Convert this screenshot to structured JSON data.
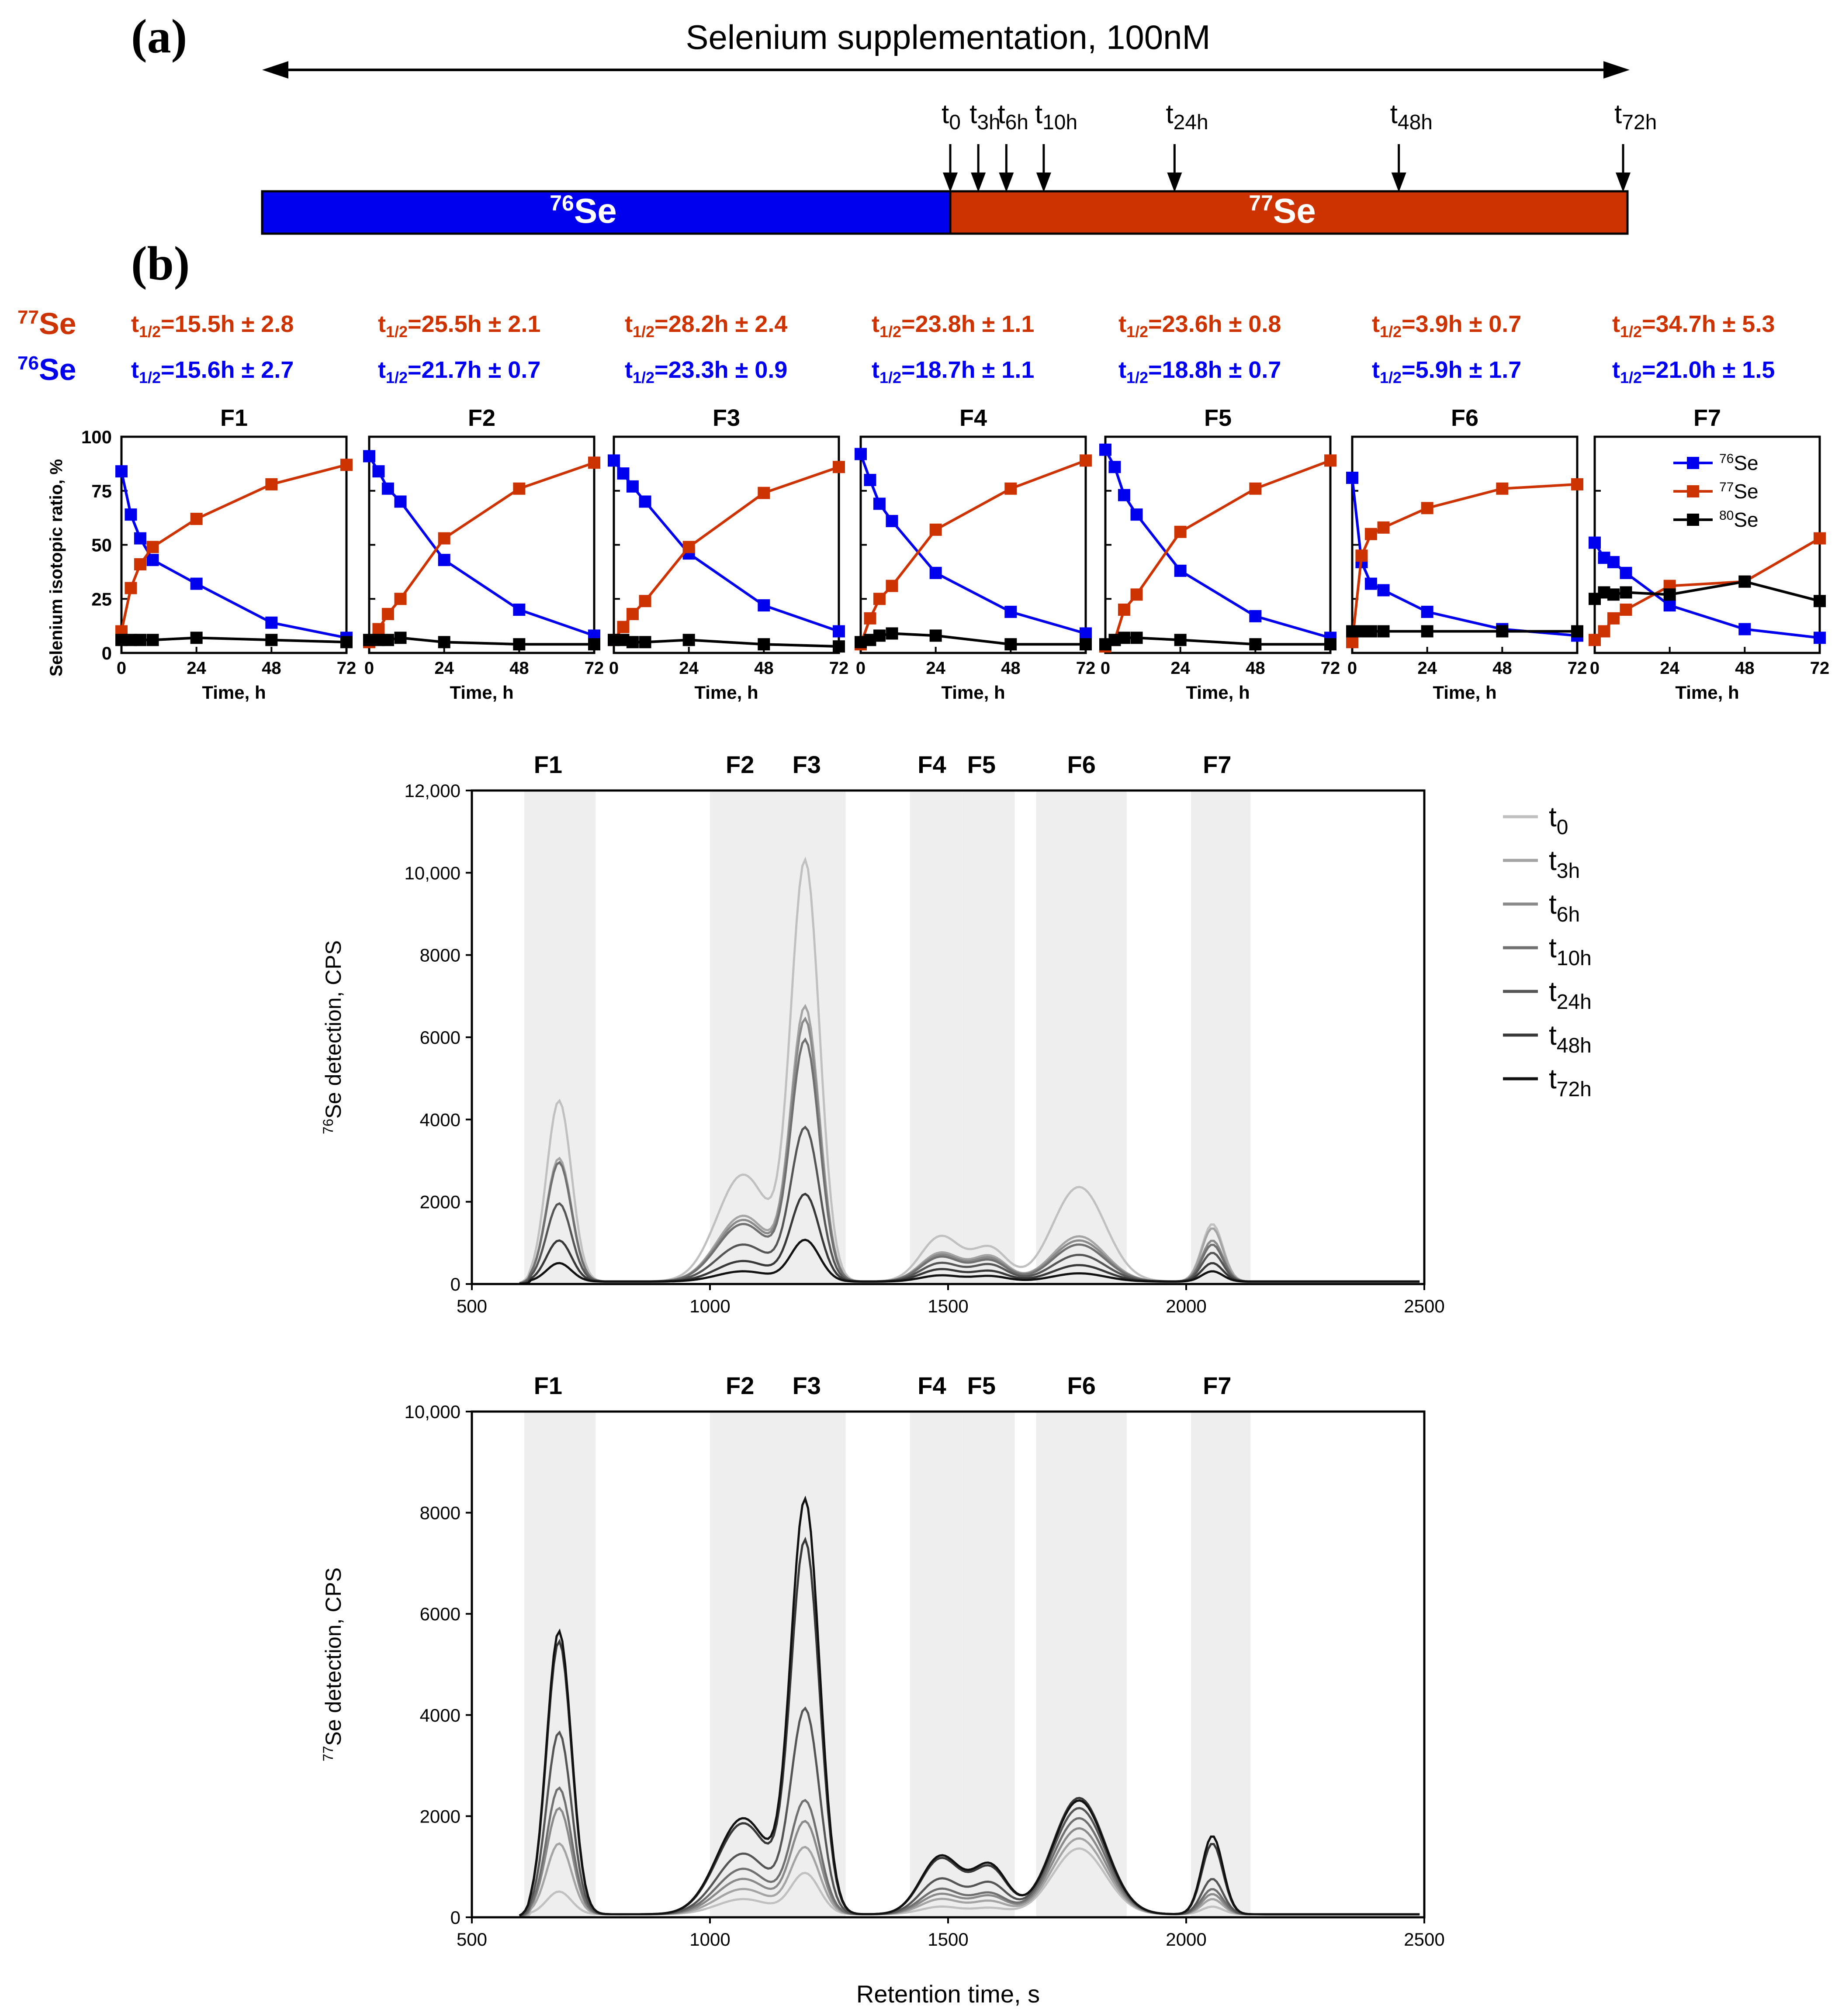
{
  "panel_a": {
    "letter": "(a)",
    "title": "Selenium supplementation, 100nM",
    "bar_left_label_sup": "76",
    "bar_left_label": "Se",
    "bar_right_label_sup": "77",
    "bar_right_label": "Se",
    "colors": {
      "left": "#0000ee",
      "right": "#cc3300"
    },
    "timepoints": [
      {
        "base": "t",
        "sub": "0",
        "hour": 0
      },
      {
        "base": "t",
        "sub": "3h",
        "hour": 3
      },
      {
        "base": "t",
        "sub": "6h",
        "hour": 6
      },
      {
        "base": "t",
        "sub": "10h",
        "hour": 10
      },
      {
        "base": "t",
        "sub": "24h",
        "hour": 24
      },
      {
        "base": "t",
        "sub": "48h",
        "hour": 48
      },
      {
        "base": "t",
        "sub": "72h",
        "hour": 72
      }
    ]
  },
  "panel_b": {
    "letter": "(b)",
    "row77": {
      "sup": "77",
      "label": "Se",
      "color": "#cc3300"
    },
    "row76": {
      "sup": "76",
      "label": "Se",
      "color": "#0000ee"
    },
    "halflife_prefix": "t",
    "halflife_sub": "1/2",
    "halflives": [
      {
        "se77": "=15.5h ± 2.8",
        "se76": "=15.6h ± 2.7"
      },
      {
        "se77": "=25.5h ± 2.1",
        "se76": "=21.7h ± 0.7"
      },
      {
        "se77": "=28.2h ± 2.4",
        "se76": "=23.3h ± 0.9"
      },
      {
        "se77": "=23.8h ± 1.1",
        "se76": "=18.7h ± 1.1"
      },
      {
        "se77": "=23.6h ± 0.8",
        "se76": "=18.8h ± 0.7"
      },
      {
        "se77": "=3.9h ± 0.7",
        "se76": "=5.9h ± 1.7"
      },
      {
        "se77": "=34.7h ± 5.3",
        "se76": "=21.0h ± 1.5"
      }
    ]
  },
  "chart_data": [
    {
      "type": "line",
      "id": "fraction-ratio-panels",
      "ylabel": "Selenium isotopic ratio, %",
      "xlabel": "Time, h",
      "x": [
        0,
        3,
        6,
        10,
        24,
        48,
        72
      ],
      "xticks": [
        0,
        24,
        48,
        72
      ],
      "ylim": [
        0,
        100
      ],
      "yticks": [
        0,
        25,
        50,
        75,
        100
      ],
      "legend": {
        "position": "top-right",
        "items": [
          {
            "sup": "76",
            "label": "Se",
            "color": "#0000ee"
          },
          {
            "sup": "77",
            "label": "Se",
            "color": "#cc3300"
          },
          {
            "sup": "80",
            "label": "Se",
            "color": "#000000"
          }
        ]
      },
      "panels": [
        {
          "title": "F1",
          "series": [
            {
              "name": "76Se",
              "color": "#0000ee",
              "values": [
                84,
                64,
                53,
                43,
                32,
                14,
                7
              ]
            },
            {
              "name": "77Se",
              "color": "#cc3300",
              "values": [
                10,
                30,
                41,
                49,
                62,
                78,
                87
              ]
            },
            {
              "name": "80Se",
              "color": "#000000",
              "values": [
                6,
                6,
                6,
                6,
                7,
                6,
                5
              ]
            }
          ]
        },
        {
          "title": "F2",
          "series": [
            {
              "name": "76Se",
              "color": "#0000ee",
              "values": [
                91,
                84,
                76,
                70,
                43,
                20,
                8
              ]
            },
            {
              "name": "77Se",
              "color": "#cc3300",
              "values": [
                5,
                11,
                18,
                25,
                53,
                76,
                88
              ]
            },
            {
              "name": "80Se",
              "color": "#000000",
              "values": [
                6,
                6,
                6,
                7,
                5,
                4,
                4
              ]
            }
          ]
        },
        {
          "title": "F3",
          "series": [
            {
              "name": "76Se",
              "color": "#0000ee",
              "values": [
                89,
                83,
                77,
                70,
                46,
                22,
                10
              ]
            },
            {
              "name": "77Se",
              "color": "#cc3300",
              "values": [
                6,
                12,
                18,
                24,
                49,
                74,
                86
              ]
            },
            {
              "name": "80Se",
              "color": "#000000",
              "values": [
                6,
                6,
                5,
                5,
                6,
                4,
                3
              ]
            }
          ]
        },
        {
          "title": "F4",
          "series": [
            {
              "name": "76Se",
              "color": "#0000ee",
              "values": [
                92,
                80,
                69,
                61,
                37,
                19,
                9
              ]
            },
            {
              "name": "77Se",
              "color": "#cc3300",
              "values": [
                4,
                16,
                25,
                31,
                57,
                76,
                89
              ]
            },
            {
              "name": "80Se",
              "color": "#000000",
              "values": [
                5,
                6,
                8,
                9,
                8,
                4,
                4
              ]
            }
          ]
        },
        {
          "title": "F5",
          "series": [
            {
              "name": "76Se",
              "color": "#0000ee",
              "values": [
                94,
                86,
                73,
                64,
                38,
                17,
                7
              ]
            },
            {
              "name": "77Se",
              "color": "#cc3300",
              "values": [
                3,
                6,
                20,
                27,
                56,
                76,
                89
              ]
            },
            {
              "name": "80Se",
              "color": "#000000",
              "values": [
                4,
                6,
                7,
                7,
                6,
                4,
                4
              ]
            }
          ]
        },
        {
          "title": "F6",
          "series": [
            {
              "name": "76Se",
              "color": "#0000ee",
              "values": [
                81,
                42,
                32,
                29,
                19,
                11,
                8
              ]
            },
            {
              "name": "77Se",
              "color": "#cc3300",
              "values": [
                5,
                45,
                55,
                58,
                67,
                76,
                78
              ]
            },
            {
              "name": "80Se",
              "color": "#000000",
              "values": [
                10,
                10,
                10,
                10,
                10,
                10,
                10
              ]
            }
          ]
        },
        {
          "title": "F7",
          "series": [
            {
              "name": "76Se",
              "color": "#0000ee",
              "values": [
                51,
                44,
                42,
                37,
                22,
                11,
                7
              ]
            },
            {
              "name": "77Se",
              "color": "#cc3300",
              "values": [
                6,
                10,
                16,
                20,
                31,
                33,
                53
              ]
            },
            {
              "name": "80Se",
              "color": "#000000",
              "values": [
                25,
                28,
                27,
                28,
                27,
                33,
                24
              ]
            }
          ]
        }
      ]
    },
    {
      "type": "line",
      "id": "chromatogram-76se",
      "ylabel_sup": "76",
      "ylabel": "Se detection, CPS",
      "xlim": [
        500,
        2500
      ],
      "xticks": [
        500,
        1000,
        1500,
        2000,
        2500
      ],
      "ylim": [
        0,
        12000
      ],
      "yticks": [
        0,
        2000,
        4000,
        6000,
        8000,
        10000,
        12000
      ],
      "ytick_labels": [
        "0",
        "2000",
        "4000",
        "6000",
        "8000",
        "10,000",
        "12,000"
      ],
      "regions": [
        {
          "label": "F1",
          "from": 610,
          "to": 760
        },
        {
          "label": "F2",
          "from": 1000,
          "to": 1140
        },
        {
          "label": "F3",
          "from": 1140,
          "to": 1285
        },
        {
          "label": "F4",
          "from": 1420,
          "to": 1530
        },
        {
          "label": "F5",
          "from": 1530,
          "to": 1640
        },
        {
          "label": "F6",
          "from": 1685,
          "to": 1875
        },
        {
          "label": "F7",
          "from": 2010,
          "to": 2135
        }
      ],
      "legend": {
        "position": "top-right"
      },
      "series": [
        {
          "name": "t0",
          "sub": "0",
          "color": "#c0c0c0",
          "peaks": [
            4400,
            2600,
            10100,
            1100,
            800,
            2300,
            1400
          ]
        },
        {
          "name": "t3h",
          "sub": "3h",
          "color": "#a4a4a4",
          "peaks": [
            3000,
            1600,
            6600,
            700,
            600,
            1100,
            1300
          ]
        },
        {
          "name": "t6h",
          "sub": "6h",
          "color": "#8a8a8a",
          "peaks": [
            2900,
            1500,
            6300,
            650,
            550,
            1000,
            1000
          ]
        },
        {
          "name": "t10h",
          "sub": "10h",
          "color": "#707070",
          "peaks": [
            2900,
            1400,
            5800,
            600,
            500,
            900,
            900
          ]
        },
        {
          "name": "t24h",
          "sub": "24h",
          "color": "#555555",
          "peaks": [
            1900,
            900,
            3700,
            450,
            400,
            650,
            700
          ]
        },
        {
          "name": "t48h",
          "sub": "48h",
          "color": "#383838",
          "peaks": [
            1000,
            500,
            2100,
            300,
            250,
            400,
            450
          ]
        },
        {
          "name": "t72h",
          "sub": "72h",
          "color": "#111111",
          "peaks": [
            450,
            250,
            1000,
            150,
            130,
            200,
            250
          ]
        }
      ]
    },
    {
      "type": "line",
      "id": "chromatogram-77se",
      "ylabel_sup": "77",
      "ylabel": "Se detection, CPS",
      "xlabel": "Retention time, s",
      "xlim": [
        500,
        2500
      ],
      "xticks": [
        500,
        1000,
        1500,
        2000,
        2500
      ],
      "ylim": [
        0,
        10000
      ],
      "yticks": [
        0,
        2000,
        4000,
        6000,
        8000,
        10000
      ],
      "ytick_labels": [
        "0",
        "2000",
        "4000",
        "6000",
        "8000",
        "10,000"
      ],
      "regions": [
        {
          "label": "F1",
          "from": 610,
          "to": 760
        },
        {
          "label": "F2",
          "from": 1000,
          "to": 1140
        },
        {
          "label": "F3",
          "from": 1140,
          "to": 1285
        },
        {
          "label": "F4",
          "from": 1420,
          "to": 1530
        },
        {
          "label": "F5",
          "from": 1530,
          "to": 1640
        },
        {
          "label": "F6",
          "from": 1685,
          "to": 1875
        },
        {
          "label": "F7",
          "from": 2010,
          "to": 2135
        }
      ],
      "series": [
        {
          "name": "t0",
          "sub": "0",
          "color": "#c0c0c0",
          "peaks": [
            450,
            300,
            800,
            150,
            120,
            1300,
            150
          ]
        },
        {
          "name": "t3h",
          "sub": "3h",
          "color": "#a4a4a4",
          "peaks": [
            1400,
            500,
            1300,
            300,
            250,
            1500,
            300
          ]
        },
        {
          "name": "t6h",
          "sub": "6h",
          "color": "#8a8a8a",
          "peaks": [
            2100,
            700,
            1800,
            400,
            350,
            1700,
            400
          ]
        },
        {
          "name": "t10h",
          "sub": "10h",
          "color": "#707070",
          "peaks": [
            2500,
            900,
            2200,
            500,
            400,
            1900,
            500
          ]
        },
        {
          "name": "t24h",
          "sub": "24h",
          "color": "#555555",
          "peaks": [
            3600,
            1200,
            4000,
            700,
            600,
            2100,
            700
          ]
        },
        {
          "name": "t48h",
          "sub": "48h",
          "color": "#383838",
          "peaks": [
            5400,
            1800,
            7300,
            1100,
            900,
            2300,
            1400
          ]
        },
        {
          "name": "t72h",
          "sub": "72h",
          "color": "#111111",
          "peaks": [
            5600,
            1900,
            8100,
            1150,
            950,
            2250,
            1550
          ]
        }
      ]
    }
  ]
}
